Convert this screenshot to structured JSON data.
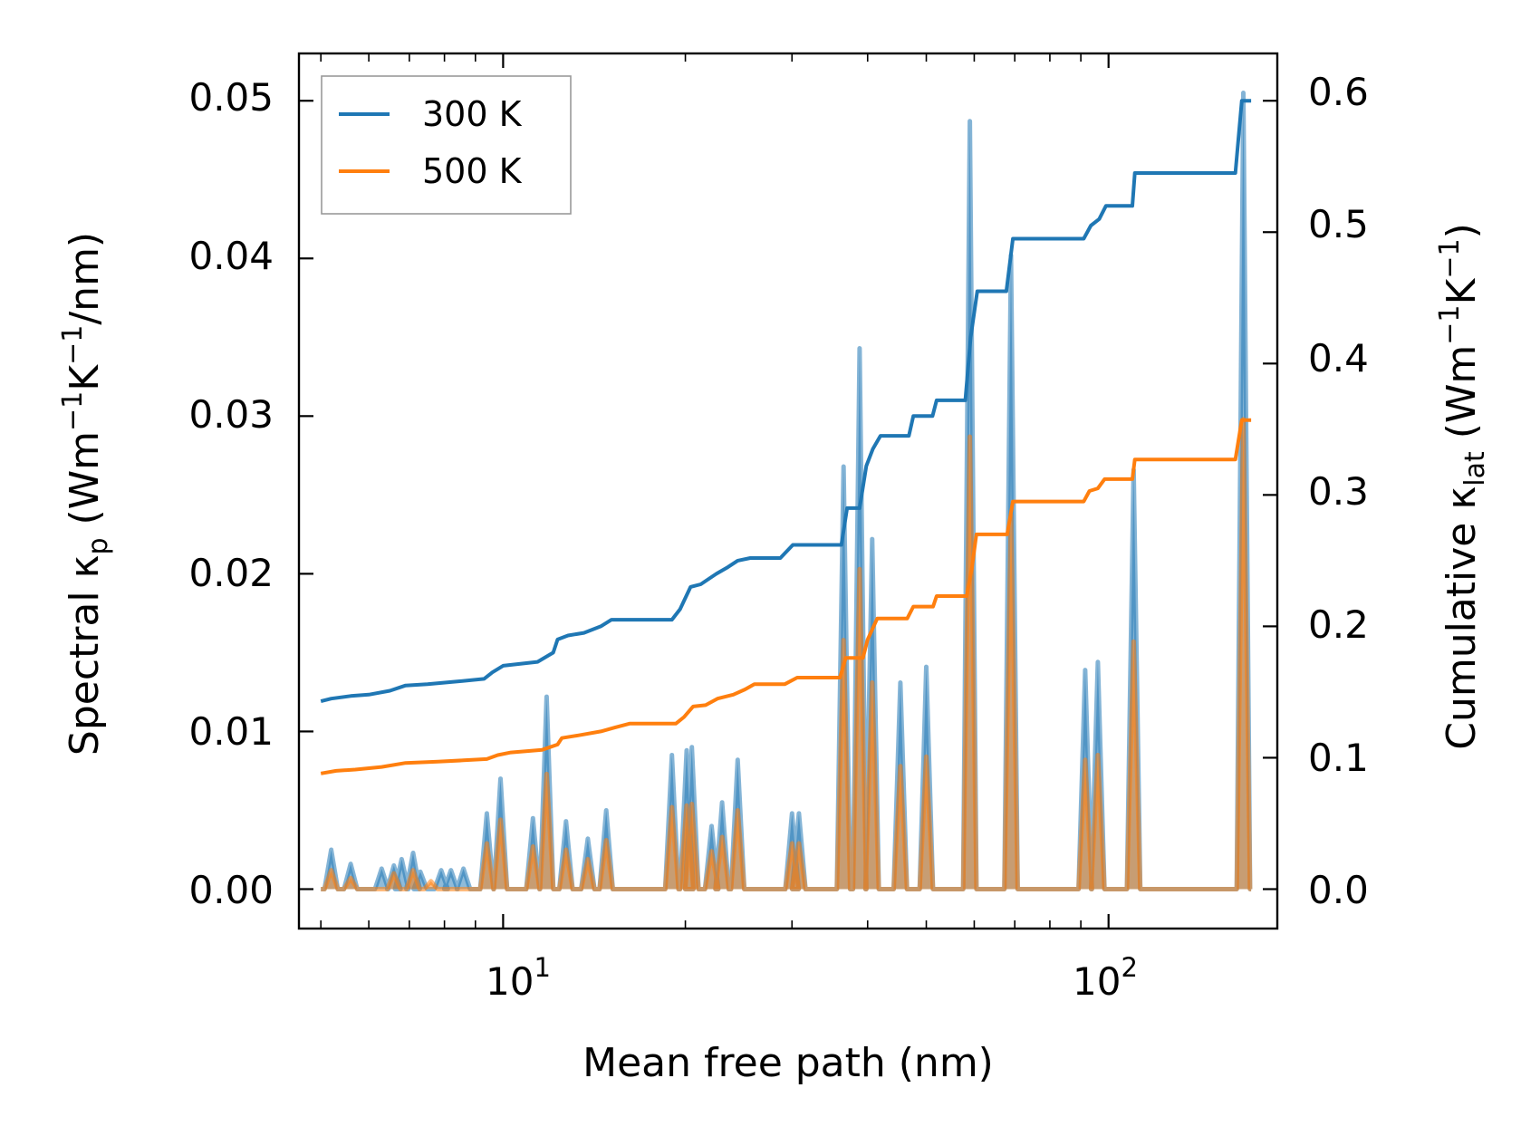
{
  "chart_data": {
    "type": "line",
    "title": "",
    "xlabel": "Mean free path (nm)",
    "xscale": "log",
    "xlim": [
      4.6,
      190
    ],
    "x_tick_labels": [
      {
        "value": 10,
        "base": "10",
        "exponent": "1"
      },
      {
        "value": 100,
        "base": "10",
        "exponent": "2"
      }
    ],
    "left_axis": {
      "label_main": "Spectral κ",
      "label_sub": "p",
      "label_units_open": " (Wm",
      "label_sup1": "−1",
      "label_units_mid": "K",
      "label_sup2": "−1",
      "label_units_close": "/nm)",
      "ylim": [
        -0.0025,
        0.053
      ],
      "ticks": [
        {
          "value": 0.0,
          "label": "0.00"
        },
        {
          "value": 0.01,
          "label": "0.01"
        },
        {
          "value": 0.02,
          "label": "0.02"
        },
        {
          "value": 0.03,
          "label": "0.03"
        },
        {
          "value": 0.04,
          "label": "0.04"
        },
        {
          "value": 0.05,
          "label": "0.05"
        }
      ]
    },
    "right_axis": {
      "label_main": "Cumulative κ",
      "label_sub": "lat",
      "label_units_open": " (Wm",
      "label_sup1": "−1",
      "label_units_mid": "K",
      "label_sup2": "−1",
      "label_units_close": ")",
      "ylim": [
        -0.03,
        0.636
      ],
      "ticks": [
        {
          "value": 0.0,
          "label": "0.0"
        },
        {
          "value": 0.1,
          "label": "0.1"
        },
        {
          "value": 0.2,
          "label": "0.2"
        },
        {
          "value": 0.3,
          "label": "0.3"
        },
        {
          "value": 0.4,
          "label": "0.4"
        },
        {
          "value": 0.5,
          "label": "0.5"
        },
        {
          "value": 0.6,
          "label": "0.6"
        }
      ]
    },
    "legend": {
      "position": "top-left",
      "entries": [
        {
          "name": "300 K",
          "color": "#1f77b4"
        },
        {
          "name": "500 K",
          "color": "#ff7f0e"
        }
      ]
    },
    "series": [
      {
        "name": "300 K",
        "axis": "right",
        "kind": "cumulative",
        "color": "#1f77b4",
        "points": [
          [
            5.0,
            0.143
          ],
          [
            5.2,
            0.145
          ],
          [
            5.6,
            0.147
          ],
          [
            6.0,
            0.148
          ],
          [
            6.5,
            0.151
          ],
          [
            6.9,
            0.155
          ],
          [
            7.5,
            0.156
          ],
          [
            8.4,
            0.158
          ],
          [
            9.3,
            0.16
          ],
          [
            9.6,
            0.165
          ],
          [
            10.0,
            0.17
          ],
          [
            11.4,
            0.173
          ],
          [
            12.1,
            0.18
          ],
          [
            12.3,
            0.19
          ],
          [
            12.8,
            0.193
          ],
          [
            13.6,
            0.195
          ],
          [
            14.5,
            0.2
          ],
          [
            15.1,
            0.205
          ],
          [
            16.0,
            0.205
          ],
          [
            19.0,
            0.205
          ],
          [
            19.6,
            0.213
          ],
          [
            20.4,
            0.23
          ],
          [
            21.2,
            0.232
          ],
          [
            22.5,
            0.24
          ],
          [
            23.5,
            0.245
          ],
          [
            24.4,
            0.25
          ],
          [
            25.6,
            0.252
          ],
          [
            28.7,
            0.252
          ],
          [
            30.1,
            0.262
          ],
          [
            31.5,
            0.262
          ],
          [
            36.2,
            0.262
          ],
          [
            37.0,
            0.29
          ],
          [
            38.8,
            0.29
          ],
          [
            39.8,
            0.322
          ],
          [
            40.8,
            0.335
          ],
          [
            42.0,
            0.345
          ],
          [
            46.8,
            0.345
          ],
          [
            47.6,
            0.36
          ],
          [
            51.2,
            0.36
          ],
          [
            52.0,
            0.372
          ],
          [
            58.0,
            0.372
          ],
          [
            59.2,
            0.42
          ],
          [
            60.7,
            0.455
          ],
          [
            67.8,
            0.455
          ],
          [
            69.5,
            0.495
          ],
          [
            91.0,
            0.495
          ],
          [
            93.5,
            0.505
          ],
          [
            96.5,
            0.51
          ],
          [
            99.0,
            0.52
          ],
          [
            109.5,
            0.52
          ],
          [
            110.5,
            0.545
          ],
          [
            162.0,
            0.545
          ],
          [
            166.0,
            0.6
          ],
          [
            172.0,
            0.6
          ]
        ]
      },
      {
        "name": "500 K",
        "axis": "right",
        "kind": "cumulative",
        "color": "#ff7f0e",
        "points": [
          [
            5.0,
            0.088
          ],
          [
            5.3,
            0.09
          ],
          [
            5.7,
            0.091
          ],
          [
            6.3,
            0.093
          ],
          [
            6.9,
            0.096
          ],
          [
            7.8,
            0.097
          ],
          [
            8.6,
            0.098
          ],
          [
            9.4,
            0.099
          ],
          [
            9.8,
            0.102
          ],
          [
            10.3,
            0.104
          ],
          [
            11.6,
            0.106
          ],
          [
            12.3,
            0.11
          ],
          [
            12.5,
            0.115
          ],
          [
            13.3,
            0.117
          ],
          [
            14.5,
            0.12
          ],
          [
            15.3,
            0.123
          ],
          [
            16.2,
            0.126
          ],
          [
            19.3,
            0.126
          ],
          [
            19.9,
            0.131
          ],
          [
            20.6,
            0.139
          ],
          [
            21.6,
            0.14
          ],
          [
            22.6,
            0.145
          ],
          [
            24.0,
            0.148
          ],
          [
            25.1,
            0.152
          ],
          [
            26.0,
            0.156
          ],
          [
            29.2,
            0.156
          ],
          [
            30.6,
            0.161
          ],
          [
            36.0,
            0.161
          ],
          [
            36.8,
            0.176
          ],
          [
            39.3,
            0.176
          ],
          [
            40.0,
            0.19
          ],
          [
            41.5,
            0.206
          ],
          [
            46.5,
            0.206
          ],
          [
            47.6,
            0.215
          ],
          [
            51.3,
            0.215
          ],
          [
            52.0,
            0.223
          ],
          [
            58.3,
            0.223
          ],
          [
            59.5,
            0.245
          ],
          [
            60.5,
            0.27
          ],
          [
            68.0,
            0.27
          ],
          [
            69.5,
            0.295
          ],
          [
            91.0,
            0.295
          ],
          [
            93.0,
            0.303
          ],
          [
            96.0,
            0.305
          ],
          [
            98.5,
            0.312
          ],
          [
            109.5,
            0.312
          ],
          [
            110.5,
            0.327
          ],
          [
            162.0,
            0.327
          ],
          [
            166.0,
            0.357
          ],
          [
            172.0,
            0.357
          ]
        ]
      },
      {
        "name": "300 K spectral",
        "axis": "left",
        "kind": "spectral",
        "color": "#1f77b4",
        "peaks": [
          [
            5.2,
            0.0025
          ],
          [
            5.6,
            0.0016
          ],
          [
            6.3,
            0.0013
          ],
          [
            6.6,
            0.0015
          ],
          [
            6.8,
            0.0019
          ],
          [
            7.1,
            0.0023
          ],
          [
            7.3,
            0.0011
          ],
          [
            7.9,
            0.0012
          ],
          [
            8.2,
            0.0012
          ],
          [
            8.6,
            0.0013
          ],
          [
            9.4,
            0.0048
          ],
          [
            9.9,
            0.007
          ],
          [
            11.2,
            0.0045
          ],
          [
            11.8,
            0.0122
          ],
          [
            12.7,
            0.0043
          ],
          [
            13.8,
            0.0032
          ],
          [
            14.8,
            0.005
          ],
          [
            19.0,
            0.0085
          ],
          [
            20.1,
            0.0088
          ],
          [
            20.5,
            0.009
          ],
          [
            22.1,
            0.004
          ],
          [
            23.0,
            0.0055
          ],
          [
            24.4,
            0.0082
          ],
          [
            30.0,
            0.0048
          ],
          [
            30.8,
            0.0048
          ],
          [
            36.5,
            0.0268
          ],
          [
            38.8,
            0.0343
          ],
          [
            40.7,
            0.0222
          ],
          [
            45.3,
            0.0131
          ],
          [
            50.0,
            0.0141
          ],
          [
            59.0,
            0.0487
          ],
          [
            69.0,
            0.0402
          ],
          [
            91.5,
            0.0139
          ],
          [
            96.0,
            0.0144
          ],
          [
            110.0,
            0.0266
          ],
          [
            167.0,
            0.0505
          ]
        ]
      },
      {
        "name": "500 K spectral",
        "axis": "left",
        "kind": "spectral",
        "color": "#ff7f0e",
        "peaks": [
          [
            5.2,
            0.0012
          ],
          [
            5.6,
            0.0007
          ],
          [
            6.6,
            0.001
          ],
          [
            7.1,
            0.0012
          ],
          [
            7.6,
            0.0005
          ],
          [
            9.4,
            0.0029
          ],
          [
            9.9,
            0.0044
          ],
          [
            11.2,
            0.0027
          ],
          [
            11.8,
            0.0073
          ],
          [
            12.7,
            0.0025
          ],
          [
            13.8,
            0.0019
          ],
          [
            14.8,
            0.0031
          ],
          [
            19.0,
            0.0052
          ],
          [
            20.1,
            0.0053
          ],
          [
            20.5,
            0.0054
          ],
          [
            22.1,
            0.0024
          ],
          [
            23.0,
            0.0033
          ],
          [
            24.4,
            0.005
          ],
          [
            30.0,
            0.0029
          ],
          [
            30.8,
            0.0029
          ],
          [
            36.5,
            0.0158
          ],
          [
            38.8,
            0.0203
          ],
          [
            40.7,
            0.0131
          ],
          [
            45.3,
            0.0078
          ],
          [
            50.0,
            0.0084
          ],
          [
            59.0,
            0.0287
          ],
          [
            69.0,
            0.0237
          ],
          [
            91.5,
            0.0082
          ],
          [
            96.0,
            0.0085
          ],
          [
            110.0,
            0.0157
          ],
          [
            167.0,
            0.0298
          ]
        ]
      }
    ]
  }
}
